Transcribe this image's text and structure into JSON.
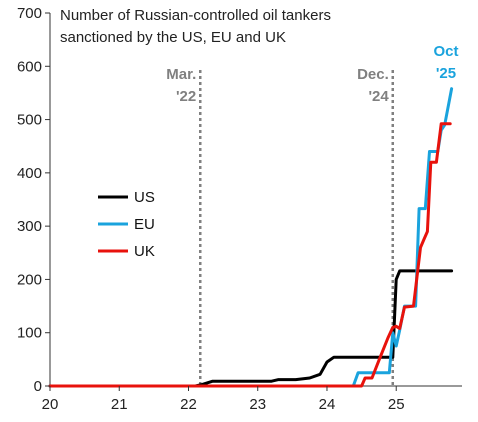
{
  "chart_data": {
    "type": "line",
    "title_lines": [
      "Number of Russian-controlled oil tankers",
      "sanctioned by the US, EU and UK"
    ],
    "xlabel": "",
    "ylabel": "",
    "xlim": [
      20,
      25.95
    ],
    "ylim": [
      0,
      700
    ],
    "x_ticks": [
      20,
      21,
      22,
      23,
      24,
      25
    ],
    "y_ticks": [
      0,
      100,
      200,
      300,
      400,
      500,
      600,
      700
    ],
    "grid": false,
    "legend": {
      "placement": "left-middle",
      "entries": [
        "US",
        "EU",
        "UK"
      ]
    },
    "vlines": [
      {
        "x": 22.17,
        "label_lines": [
          "Mar.",
          "'22"
        ],
        "color": "#808080"
      },
      {
        "x": 24.95,
        "label_lines": [
          "Dec.",
          "'24"
        ],
        "color": "#808080"
      }
    ],
    "endpoint_annotation": {
      "label_lines": [
        "Oct",
        "'25"
      ],
      "color": "#1aa3dd",
      "x": 25.8,
      "y": 558
    },
    "series": [
      {
        "name": "US",
        "color": "#000000",
        "points": [
          [
            20.0,
            0
          ],
          [
            22.1,
            0
          ],
          [
            22.2,
            3
          ],
          [
            22.35,
            9
          ],
          [
            23.2,
            9
          ],
          [
            23.3,
            12
          ],
          [
            23.55,
            12
          ],
          [
            23.75,
            15
          ],
          [
            23.9,
            22
          ],
          [
            24.0,
            45
          ],
          [
            24.1,
            54
          ],
          [
            24.95,
            54
          ],
          [
            25.0,
            200
          ],
          [
            25.05,
            216
          ],
          [
            25.8,
            216
          ]
        ]
      },
      {
        "name": "EU",
        "color": "#1aa3dd",
        "points": [
          [
            20.0,
            0
          ],
          [
            24.38,
            0
          ],
          [
            24.45,
            25
          ],
          [
            24.9,
            25
          ],
          [
            24.95,
            100
          ],
          [
            25.0,
            75
          ],
          [
            25.05,
            105
          ],
          [
            25.12,
            150
          ],
          [
            25.28,
            150
          ],
          [
            25.33,
            333
          ],
          [
            25.42,
            333
          ],
          [
            25.48,
            440
          ],
          [
            25.6,
            440
          ],
          [
            25.65,
            480
          ],
          [
            25.7,
            490
          ],
          [
            25.8,
            558
          ]
        ]
      },
      {
        "name": "UK",
        "color": "#e8120c",
        "points": [
          [
            20.0,
            0
          ],
          [
            24.5,
            0
          ],
          [
            24.55,
            15
          ],
          [
            24.65,
            15
          ],
          [
            24.75,
            48
          ],
          [
            24.88,
            90
          ],
          [
            24.95,
            110
          ],
          [
            25.0,
            112
          ],
          [
            25.05,
            108
          ],
          [
            25.12,
            148
          ],
          [
            25.25,
            150
          ],
          [
            25.35,
            260
          ],
          [
            25.4,
            275
          ],
          [
            25.45,
            290
          ],
          [
            25.5,
            420
          ],
          [
            25.58,
            420
          ],
          [
            25.65,
            492
          ],
          [
            25.78,
            492
          ]
        ]
      }
    ]
  }
}
